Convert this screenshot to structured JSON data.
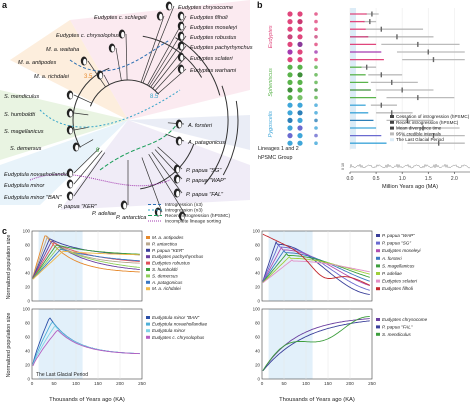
{
  "panels": {
    "a": "a",
    "b": "b",
    "c": "c"
  },
  "tree": {
    "taxa": [
      {
        "name": "Eudyptes chrysocome",
        "x": 178,
        "y": 9,
        "anchor": "start"
      },
      {
        "name": "Eudyptes filholi",
        "x": 190,
        "y": 19,
        "anchor": "start"
      },
      {
        "name": "Eudyptes c. schlegeli",
        "x": 94,
        "y": 19,
        "anchor": "start"
      },
      {
        "name": "Eudyptes moseleyi",
        "x": 190,
        "y": 29,
        "anchor": "start"
      },
      {
        "name": "Eudyptes c. chrysolophus",
        "x": 56,
        "y": 37,
        "anchor": "start"
      },
      {
        "name": "Eudyptes robustus",
        "x": 190,
        "y": 39,
        "anchor": "start"
      },
      {
        "name": "Eudyptes pachyrhynchus",
        "x": 190,
        "y": 49,
        "anchor": "start"
      },
      {
        "name": "M. a. waitaha",
        "x": 46,
        "y": 51,
        "anchor": "start"
      },
      {
        "name": "Eudyptes sclateri",
        "x": 190,
        "y": 60,
        "anchor": "start"
      },
      {
        "name": "M. a. antipodes",
        "x": 18,
        "y": 64,
        "anchor": "start"
      },
      {
        "name": "Eudyptes warhami",
        "x": 190,
        "y": 72,
        "anchor": "start"
      },
      {
        "name": "M. a. richdalei",
        "x": 34,
        "y": 78,
        "anchor": "start"
      },
      {
        "name": "S. mendiculus",
        "x": 4,
        "y": 98,
        "anchor": "start"
      },
      {
        "name": "S. humboldti",
        "x": 4,
        "y": 116,
        "anchor": "start"
      },
      {
        "name": "S. magellanicus",
        "x": 4,
        "y": 133,
        "anchor": "start"
      },
      {
        "name": "S. demersus",
        "x": 10,
        "y": 150,
        "anchor": "start"
      },
      {
        "name": "A. forsteri",
        "x": 188,
        "y": 127,
        "anchor": "start"
      },
      {
        "name": "A. patagonicus",
        "x": 188,
        "y": 144,
        "anchor": "start"
      },
      {
        "name": "Eudyptula novaehollandiae",
        "x": 4,
        "y": 176,
        "anchor": "start"
      },
      {
        "name": "Eudyptula minor",
        "x": 4,
        "y": 187,
        "anchor": "start"
      },
      {
        "name": "Eudyptula minor \"BAN\"",
        "x": 4,
        "y": 199,
        "anchor": "start"
      },
      {
        "name": "P. papua \"SG\"",
        "x": 186,
        "y": 172,
        "anchor": "start"
      },
      {
        "name": "P. papua \"WAP\"",
        "x": 186,
        "y": 182,
        "anchor": "start"
      },
      {
        "name": "P. papua \"KER\"",
        "x": 58,
        "y": 208,
        "anchor": "start"
      },
      {
        "name": "P. papua \"FAL\"",
        "x": 186,
        "y": 196,
        "anchor": "start"
      },
      {
        "name": "P. adeliae",
        "x": 92,
        "y": 215,
        "anchor": "start"
      },
      {
        "name": "P. antarctica",
        "x": 116,
        "y": 219,
        "anchor": "start"
      }
    ],
    "legend": [
      {
        "label": "Introgression (n3)",
        "color": "#2b6fb3",
        "dash": "3,2"
      },
      {
        "label": "Introgression (n3)",
        "color": "#33a3c9",
        "dash": "2,2"
      },
      {
        "label": "Recent introgression (hPSMC)",
        "color": "#1b9e5a",
        "dash": "4,2"
      },
      {
        "label": "Incomplete lineage sorting",
        "color": "#a33ab0",
        "dash": "1,1"
      }
    ],
    "annotations": [
      "8.5",
      "3.5",
      "9"
    ]
  },
  "timeline": {
    "groups": [
      {
        "label": "Eudyptes",
        "color": "#e0467c"
      },
      {
        "label": "Spheniscus",
        "color": "#5ab34b"
      },
      {
        "label": "Pygoscelis",
        "color": "#3fa6d9"
      }
    ],
    "footer_left_1": "Lineages 1 and 2",
    "footer_left_2": "hPSMC Group",
    "xlabel": "Million Years ago (MA)",
    "ticks": [
      "0.0",
      "0.5",
      "1.0",
      "1.5",
      "2.0"
    ],
    "ylabel_small": "0 10",
    "legend": [
      "Cessation of introgression (hPSMC)",
      "Recent introgression (hPSMC)",
      "Mean divergence time",
      "95% credible intervals",
      "The Last Glacial Period"
    ],
    "rows": [
      {
        "c1": "#e0467c",
        "c2": "#e0467c",
        "ci": [
          0.3,
          0.55
        ],
        "mean": 0.42,
        "recent": 0.32
      },
      {
        "c1": "#e0467c",
        "c2": "#c93770",
        "ci": [
          0.25,
          0.5
        ],
        "mean": 0.38,
        "recent": 0.28
      },
      {
        "c1": "#e0467c",
        "c2": "#e0467c",
        "ci": [
          0.28,
          1.4
        ],
        "mean": 0.6,
        "recent": 0.3
      },
      {
        "c1": "#c9467c",
        "c2": "#e0467c",
        "ci": [
          0.3,
          1.6
        ],
        "mean": 0.9,
        "recent": 0.35
      },
      {
        "c1": "#e0467c",
        "c2": "#8a3a9a",
        "ci": [
          0.6,
          2.1
        ],
        "mean": 1.3,
        "recent": 0.5
      },
      {
        "c1": "#a33ab0",
        "c2": "#e0467c",
        "ci": [
          0.9,
          2.2
        ],
        "mean": 1.5,
        "recent": 0.6
      },
      {
        "c1": "#e0467c",
        "c2": "#e0467c",
        "ci": [
          1.0,
          2.2
        ],
        "mean": 1.6,
        "recent": 0.65
      },
      {
        "c1": "#5ab34b",
        "c2": "#5ab34b",
        "ci": [
          0.2,
          0.5
        ],
        "mean": 0.32,
        "recent": 0.22
      },
      {
        "c1": "#5ab34b",
        "c2": "#3f8f3a",
        "ci": [
          0.35,
          1.0
        ],
        "mean": 0.6,
        "recent": 0.3
      },
      {
        "c1": "#5ab34b",
        "c2": "#5ab34b",
        "ci": [
          0.4,
          1.3
        ],
        "mean": 0.8,
        "recent": 0.35
      },
      {
        "c1": "#3f8f3a",
        "c2": "#5ab34b",
        "ci": [
          0.5,
          1.6
        ],
        "mean": 1.0,
        "recent": 0.4
      },
      {
        "c1": "#5ab34b",
        "c2": "#7ac26a",
        "ci": [
          0.7,
          2.0
        ],
        "mean": 1.3,
        "recent": 0.5
      },
      {
        "c1": "#3fa6d9",
        "c2": "#3fa6d9",
        "ci": [
          0.4,
          0.9
        ],
        "mean": 0.6,
        "recent": 0.3
      },
      {
        "c1": "#3fa6d9",
        "c2": "#2c7fb8",
        "ci": [
          0.5,
          1.2
        ],
        "mean": 0.8,
        "recent": 0.35
      },
      {
        "c1": "#2c7fb8",
        "c2": "#3fa6d9",
        "ci": [
          0.7,
          1.6
        ],
        "mean": 1.1,
        "recent": 0.45
      },
      {
        "c1": "#3fa6d9",
        "c2": "#6a6ad0",
        "ci": [
          0.9,
          2.1
        ],
        "mean": 1.4,
        "recent": 0.5
      },
      {
        "c1": "#6a6ad0",
        "c2": "#3fa6d9",
        "ci": [
          1.0,
          2.2
        ],
        "mean": 1.6,
        "recent": 0.6
      },
      {
        "c1": "#3fa6d9",
        "c2": "#3fa6d9",
        "ci": [
          1.1,
          2.2
        ],
        "mean": 1.7,
        "recent": 0.7
      }
    ]
  },
  "psmc": {
    "ylabel_top": "Normalized population size",
    "ylabel_bottom": "Normalized population size",
    "xlabel": "Thousands of Years ago (KA)",
    "lgp_label": "The Last Glacial Period",
    "xticks": [
      "0",
      "50",
      "100",
      "150",
      "200",
      "250"
    ],
    "yticks": [
      "0",
      "20",
      "40",
      "60",
      "80",
      "100"
    ],
    "left_top_legend": [
      {
        "label": "M. a. antipodes",
        "color": "#e6892c"
      },
      {
        "label": "P. antarctica",
        "color": "#b9a88f"
      },
      {
        "label": "P. papua \"KER\"",
        "color": "#3a3f9a"
      },
      {
        "label": "Eudyptes pachyrhynchus",
        "color": "#6a3fa0"
      },
      {
        "label": "Eudyptes robustus",
        "color": "#e04f5a"
      },
      {
        "label": "S. humboldti",
        "color": "#3d9e3d"
      },
      {
        "label": "S. demersus",
        "color": "#8fcf5a"
      },
      {
        "label": "A. patagonicus",
        "color": "#3a78c2"
      },
      {
        "label": "M. a. richdalei",
        "color": "#f0b94a"
      }
    ],
    "left_bottom_legend": [
      {
        "label": "Eudyptula minor \"BAN\"",
        "color": "#2a4fa8"
      },
      {
        "label": "Eudyptula novaehollandiae",
        "color": "#4fb0d8"
      },
      {
        "label": "Eudyptula minor",
        "color": "#7fd3e6"
      },
      {
        "label": "Eudyptes c. chrysolophus",
        "color": "#b45fc2"
      }
    ],
    "right_top_legend": [
      {
        "label": "P. papua \"WAP\"",
        "color": "#3a3f9a"
      },
      {
        "label": "P. papua \"SG\"",
        "color": "#6a6ad0"
      },
      {
        "label": "Eudyptes moseleyi",
        "color": "#b04fb0"
      },
      {
        "label": "A. forsteri",
        "color": "#3a78c2"
      },
      {
        "label": "S. magellanicus",
        "color": "#3d9e3d"
      },
      {
        "label": "P. adeliae",
        "color": "#9fcf3a"
      },
      {
        "label": "Eudyptes sclateri",
        "color": "#e28fc6"
      },
      {
        "label": "Eudyptes filholi",
        "color": "#c2282e"
      }
    ],
    "right_bottom_legend": [
      {
        "label": "Eudyptes chrysocome",
        "color": "#6a3fa0"
      },
      {
        "label": "P. papua \"FAL\"",
        "color": "#3a3f9a"
      },
      {
        "label": "S. mendiculus",
        "color": "#3d9e3d"
      }
    ]
  }
}
